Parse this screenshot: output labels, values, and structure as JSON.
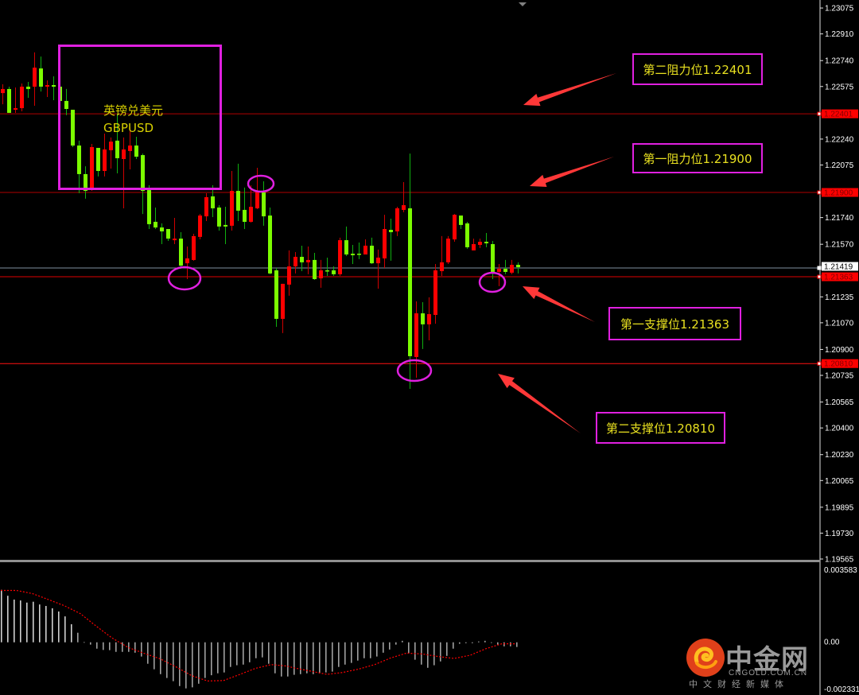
{
  "chart_data": [
    {
      "type": "candlestick",
      "symbol_label": "英镑兑美元",
      "symbol_code": "GBPUSD",
      "ylim": [
        1.19565,
        1.23126
      ],
      "y_ticks": [
        "1.23075",
        "1.22910",
        "1.22740",
        "1.22575",
        "1.22240",
        "1.22075",
        "1.21740",
        "1.21570",
        "1.21235",
        "1.21070",
        "1.20900",
        "1.20735",
        "1.20565",
        "1.20400",
        "1.20230",
        "1.20065",
        "1.19895",
        "1.19730",
        "1.19565"
      ],
      "colors": {
        "bull_body": "#ff0000",
        "bull_wick": "#d00000",
        "bear_body": "#7cfc00",
        "bear_wick": "#10b010"
      },
      "ohlc": [
        [
          1.22533,
          1.22589,
          1.22462,
          1.22559
        ],
        [
          1.22559,
          1.22574,
          1.22407,
          1.22407
        ],
        [
          1.22427,
          1.22569,
          1.22407,
          1.22437
        ],
        [
          1.22437,
          1.22594,
          1.22417,
          1.22574
        ],
        [
          1.22574,
          1.22604,
          1.22503,
          1.22559
        ],
        [
          1.22574,
          1.22792,
          1.22452,
          1.22695
        ],
        [
          1.2269,
          1.22766,
          1.22543,
          1.22574
        ],
        [
          1.22574,
          1.22614,
          1.22508,
          1.22584
        ],
        [
          1.22584,
          1.2264,
          1.22488,
          1.22574
        ],
        [
          1.22574,
          1.22625,
          1.22437,
          1.22483
        ],
        [
          1.22483,
          1.22559,
          1.22392,
          1.22432
        ],
        [
          1.22427,
          1.22427,
          1.22189,
          1.22199
        ],
        [
          1.22199,
          1.2223,
          1.21895,
          1.22017
        ],
        [
          1.22017,
          1.22067,
          1.2186,
          1.2191
        ],
        [
          1.21926,
          1.22209,
          1.2191,
          1.22189
        ],
        [
          1.22184,
          1.22184,
          1.22002,
          1.22037
        ],
        [
          1.22037,
          1.22275,
          1.22002,
          1.22174
        ],
        [
          1.22169,
          1.2225,
          1.22052,
          1.22224
        ],
        [
          1.2223,
          1.22402,
          1.22022,
          1.22118
        ],
        [
          1.22113,
          1.2225,
          1.21799,
          1.22174
        ],
        [
          1.22164,
          1.22316,
          1.22047,
          1.22199
        ],
        [
          1.22199,
          1.22255,
          1.22113,
          1.22128
        ],
        [
          1.22138,
          1.22148,
          1.21763,
          1.2191
        ],
        [
          1.21915,
          1.21946,
          1.21667,
          1.21698
        ],
        [
          1.21713,
          1.21804,
          1.21667,
          1.21677
        ],
        [
          1.21677,
          1.21703,
          1.21571,
          1.21652
        ],
        [
          1.21667,
          1.21667,
          1.21591,
          1.21606
        ],
        [
          1.21596,
          1.21738,
          1.21571,
          1.21606
        ],
        [
          1.21606,
          1.21647,
          1.21414,
          1.21434
        ],
        [
          1.21449,
          1.21556,
          1.21348,
          1.2148
        ],
        [
          1.2147,
          1.21637,
          1.21465,
          1.21622
        ],
        [
          1.21617,
          1.21763,
          1.21601,
          1.21753
        ],
        [
          1.21748,
          1.21895,
          1.21718,
          1.2187
        ],
        [
          1.21875,
          1.21946,
          1.21743,
          1.21799
        ],
        [
          1.21804,
          1.21819,
          1.21657,
          1.21683
        ],
        [
          1.21693,
          1.21809,
          1.21571,
          1.21683
        ],
        [
          1.21688,
          1.22037,
          1.21657,
          1.2191
        ],
        [
          1.2191,
          1.22083,
          1.21718,
          1.21784
        ],
        [
          1.21789,
          1.21931,
          1.21667,
          1.21713
        ],
        [
          1.21713,
          1.21946,
          1.21708,
          1.21809
        ],
        [
          1.21799,
          1.22057,
          1.21794,
          1.2191
        ],
        [
          1.219,
          1.21971,
          1.21688,
          1.21748
        ],
        [
          1.21753,
          1.21804,
          1.21379,
          1.21384
        ],
        [
          1.21404,
          1.21419,
          1.21044,
          1.21095
        ],
        [
          1.21095,
          1.21318,
          1.21004,
          1.21318
        ],
        [
          1.21313,
          1.21531,
          1.21242,
          1.21429
        ],
        [
          1.21429,
          1.2152,
          1.21384,
          1.2149
        ],
        [
          1.2149,
          1.21561,
          1.21399,
          1.21455
        ],
        [
          1.21455,
          1.21556,
          1.21379,
          1.2147
        ],
        [
          1.2147,
          1.21515,
          1.21343,
          1.21348
        ],
        [
          1.21353,
          1.2147,
          1.21293,
          1.21404
        ],
        [
          1.21404,
          1.21485,
          1.21368,
          1.21399
        ],
        [
          1.21404,
          1.21429,
          1.21368,
          1.21379
        ],
        [
          1.21379,
          1.21612,
          1.21368,
          1.21596
        ],
        [
          1.21596,
          1.21683,
          1.21495,
          1.21505
        ],
        [
          1.2151,
          1.21566,
          1.21444,
          1.215
        ],
        [
          1.2151,
          1.21581,
          1.21475,
          1.21505
        ],
        [
          1.21505,
          1.21601,
          1.21505,
          1.21561
        ],
        [
          1.21561,
          1.21612,
          1.21444,
          1.21449
        ],
        [
          1.21449,
          1.21536,
          1.21287,
          1.21485
        ],
        [
          1.2148,
          1.21758,
          1.21419,
          1.21667
        ],
        [
          1.21662,
          1.21733,
          1.21465,
          1.21647
        ],
        [
          1.21652,
          1.21809,
          1.21622,
          1.21799
        ],
        [
          1.21789,
          1.21966,
          1.21774,
          1.21819
        ],
        [
          1.21799,
          1.22148,
          1.20649,
          1.20857
        ],
        [
          1.20852,
          1.21206,
          1.2072,
          1.2113
        ],
        [
          1.2113,
          1.21201,
          1.20903,
          1.2106
        ],
        [
          1.2106,
          1.21232,
          1.20958,
          1.21125
        ],
        [
          1.2112,
          1.21444,
          1.21064,
          1.21404
        ],
        [
          1.21399,
          1.21622,
          1.21368,
          1.21455
        ],
        [
          1.21455,
          1.21622,
          1.21444,
          1.21606
        ],
        [
          1.21601,
          1.21763,
          1.21586,
          1.21758
        ],
        [
          1.21753,
          1.21753,
          1.21667,
          1.21693
        ],
        [
          1.21703,
          1.21713,
          1.21541,
          1.21551
        ],
        [
          1.21531,
          1.21606,
          1.21531,
          1.21571
        ],
        [
          1.21566,
          1.21606,
          1.21546,
          1.21586
        ],
        [
          1.21586,
          1.21642,
          1.21551,
          1.21576
        ],
        [
          1.21571,
          1.21591,
          1.21348,
          1.21394
        ],
        [
          1.21394,
          1.21444,
          1.21303,
          1.21414
        ],
        [
          1.21414,
          1.2147,
          1.21379,
          1.21394
        ],
        [
          1.21389,
          1.2147,
          1.21379,
          1.21439
        ],
        [
          1.21439,
          1.21455,
          1.21384,
          1.21424
        ]
      ],
      "current_price": {
        "value": 1.21419,
        "label": "1.21419",
        "color": "#b0b0b0"
      },
      "levels": [
        {
          "value": 1.22401,
          "label": "1.22401",
          "color": "#b00000"
        },
        {
          "value": 1.219,
          "label": "1.21900",
          "color": "#b00000"
        },
        {
          "value": 1.21363,
          "label": "1.21363",
          "color": "#e00000"
        },
        {
          "value": 1.2081,
          "label": "1.20810",
          "color": "#ff1010"
        }
      ],
      "annotations": [
        {
          "text": "第二阻力位1.22401"
        },
        {
          "text": "第一阻力位1.21900"
        },
        {
          "text": "第一支撑位1.21363"
        },
        {
          "text": "第二支撑位1.20810"
        }
      ],
      "annotation_colors": {
        "box_border": "#e020e0",
        "text": "#e8e020",
        "arrow": "#ff3838",
        "circle": "#e020e0"
      }
    },
    {
      "type": "bar+line",
      "indicator": "MACD",
      "ylim": [
        -0.002331,
        0.003583
      ],
      "y_labels": {
        "max": "0.003583",
        "zero": "0.00",
        "min": "-0.002331"
      },
      "histogram": [
        0.00247,
        0.00219,
        0.00201,
        0.00197,
        0.00187,
        0.00191,
        0.00178,
        0.00171,
        0.0016,
        0.00145,
        0.00122,
        0.00085,
        0.00045,
        1e-05,
        -0.00011,
        -0.0003,
        -0.00036,
        -0.00037,
        -0.00045,
        -0.00045,
        -0.00045,
        -0.00049,
        -0.00067,
        -0.00101,
        -0.00127,
        -0.0015,
        -0.00168,
        -0.00183,
        -0.00206,
        -0.00217,
        -0.00212,
        -0.00195,
        -0.00168,
        -0.00155,
        -0.00146,
        -0.00142,
        -0.00116,
        -0.00108,
        -0.00105,
        -0.00094,
        -0.00075,
        -0.00071,
        -0.00101,
        -0.00146,
        -0.00161,
        -0.00161,
        -0.00153,
        -0.0015,
        -0.00146,
        -0.0015,
        -0.00146,
        -0.00142,
        -0.00138,
        -0.00116,
        -0.00105,
        -0.00097,
        -0.00086,
        -0.00075,
        -0.00075,
        -0.00067,
        -0.00049,
        -0.00034,
        -0.00011,
        7e-05,
        -0.00052,
        -0.00082,
        -0.00105,
        -0.0012,
        -0.00108,
        -0.0009,
        -0.00064,
        -0.0003,
        -7e-05,
        -4e-05,
        -4e-05,
        4e-05,
        7e-05,
        0.0,
        -0.00011,
        -0.00019,
        -0.00019,
        -0.00022
      ],
      "signal": [
        [
          0,
          0.00244
        ],
        [
          2.5,
          0.00244
        ],
        [
          5,
          0.00229
        ],
        [
          7.5,
          0.00201
        ],
        [
          10,
          0.00172
        ],
        [
          12.5,
          0.00135
        ],
        [
          15,
          0.00076
        ],
        [
          17.5,
          0.0002
        ],
        [
          20,
          -0.00024
        ],
        [
          22.5,
          -0.00052
        ],
        [
          25,
          -0.00077
        ],
        [
          27.5,
          -0.00115
        ],
        [
          30,
          -0.00157
        ],
        [
          32.5,
          -0.00182
        ],
        [
          35,
          -0.0018
        ],
        [
          37.5,
          -0.00152
        ],
        [
          40,
          -0.00123
        ],
        [
          42.5,
          -0.00105
        ],
        [
          45,
          -0.00112
        ],
        [
          46,
          -0.0012
        ],
        [
          48.75,
          -0.00136
        ],
        [
          51.25,
          -0.00151
        ],
        [
          53.75,
          -0.00142
        ],
        [
          56.25,
          -0.00126
        ],
        [
          58.75,
          -0.00105
        ],
        [
          61.25,
          -0.00074
        ],
        [
          63.75,
          -0.00051
        ],
        [
          66.25,
          -0.00055
        ],
        [
          68.75,
          -0.00067
        ],
        [
          71.25,
          -0.00076
        ],
        [
          73.75,
          -0.00061
        ],
        [
          76.25,
          -0.0003
        ],
        [
          78.75,
          -7e-05
        ],
        [
          81,
          -7e-05
        ]
      ],
      "colors": {
        "histogram": "#b8b8b8",
        "signal": "#ff0000"
      }
    }
  ],
  "watermark": {
    "brand": "中金网",
    "domain": "CNGOLD.COM.CN",
    "slogan": "中文财经新媒体"
  }
}
